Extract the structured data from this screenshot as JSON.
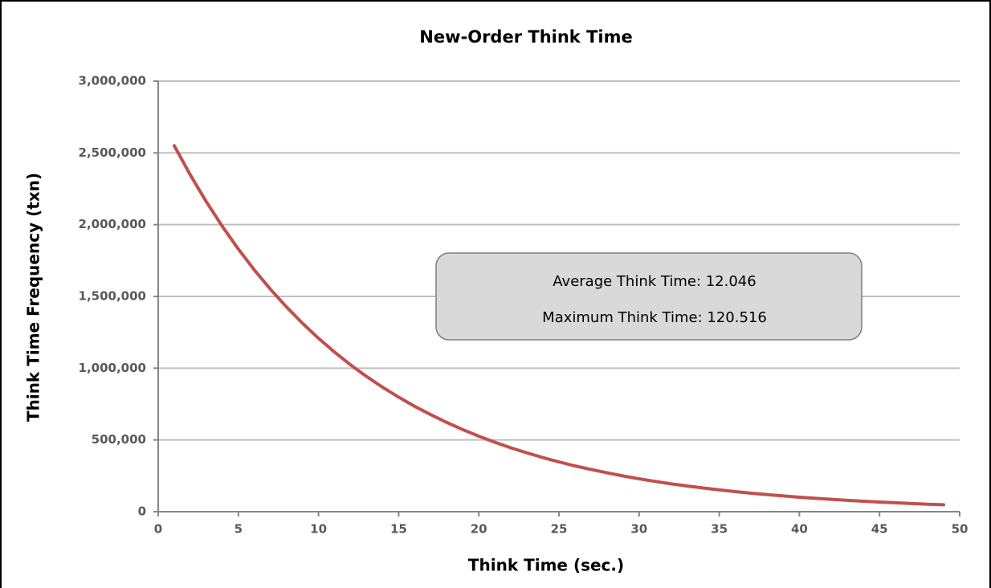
{
  "chart_data": {
    "type": "line",
    "title": "New-Order Think Time",
    "x_label": "Think Time (sec.)",
    "y_label": "Think Time Frequency (txn)",
    "annotations": [
      "Average Think Time: 12.046",
      "Maximum Think Time: 120.516"
    ],
    "x": [
      1,
      2,
      3,
      4,
      5,
      6,
      7,
      8,
      9,
      10,
      11,
      12,
      13,
      14,
      15,
      16,
      17,
      18,
      19,
      20,
      21,
      22,
      23,
      24,
      25,
      26,
      27,
      28,
      29,
      30,
      31,
      32,
      33,
      34,
      35,
      36,
      37,
      38,
      39,
      40,
      41,
      42,
      43,
      44,
      45,
      46,
      47,
      48,
      49
    ],
    "series": [
      {
        "color": "#c0504d",
        "values": [
          2550000,
          2347000,
          2160000,
          1988000,
          1830000,
          1684000,
          1550000,
          1427000,
          1313000,
          1208000,
          1112000,
          1023000,
          942000,
          867000,
          798000,
          734000,
          676000,
          622000,
          572000,
          526000,
          484000,
          445000,
          410000,
          377000,
          347000,
          319000,
          294000,
          271000,
          249000,
          229000,
          211000,
          194000,
          179000,
          165000,
          152000,
          140000,
          129000,
          119000,
          110000,
          101000,
          93000,
          86000,
          79000,
          73000,
          67000,
          62000,
          57000,
          52000,
          48000
        ]
      }
    ],
    "xlim": [
      0,
      50
    ],
    "xticks": [
      0,
      5,
      10,
      15,
      20,
      25,
      30,
      35,
      40,
      45,
      50
    ],
    "ylim": [
      0,
      3000000
    ],
    "yticks": [
      0,
      {
        "value": 500000,
        "label": "500,000"
      },
      {
        "value": 1000000,
        "label": "1,000,000"
      },
      {
        "value": 1500000,
        "label": "1,500,000"
      },
      {
        "value": 2000000,
        "label": "2,000,000"
      },
      {
        "value": 2500000,
        "label": "2,500,000"
      },
      {
        "value": 3000000,
        "label": "3,000,000"
      }
    ],
    "grid": true
  }
}
